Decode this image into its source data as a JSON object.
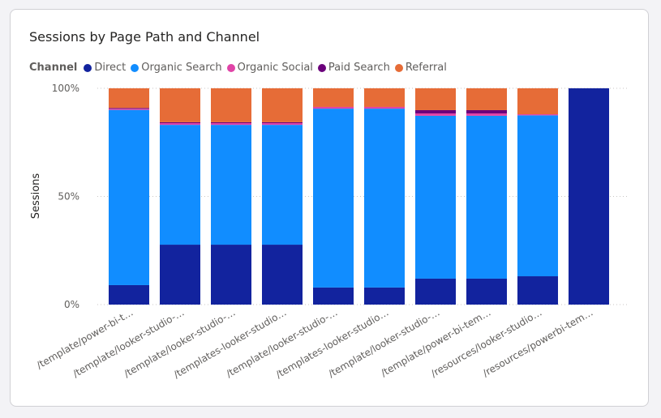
{
  "chart_data": {
    "type": "bar",
    "stacked": "100%",
    "title": "Sessions by Page Path and Channel",
    "legend_title": "Channel",
    "legend_position": "top-left",
    "ylabel": "Sessions",
    "xlabel": "",
    "ylim": [
      0,
      100
    ],
    "yticks": [
      "0%",
      "50%",
      "100%"
    ],
    "grid": true,
    "categories": [
      "/template/power-bi-t…",
      "/template/looker-studio-…",
      "/template/looker-studio-…",
      "/templates-looker-studio…",
      "/template/looker-studio-…",
      "/templates-looker-studio…",
      "/template/looker-studio-…",
      "/template/power-bi-tem…",
      "/resources/looker-studio…",
      "/resources/powerbi-tem…"
    ],
    "series": [
      {
        "name": "Direct",
        "color": "#12239E",
        "values": [
          9.0,
          27.7,
          27.7,
          27.7,
          7.9,
          7.9,
          12.0,
          12.0,
          13.1,
          100
        ]
      },
      {
        "name": "Organic Search",
        "color": "#118DFF",
        "values": [
          81.0,
          55.4,
          55.4,
          55.4,
          82.7,
          82.7,
          75.3,
          75.3,
          74.4,
          0
        ]
      },
      {
        "name": "Organic Social",
        "color": "#E044A7",
        "values": [
          0.5,
          0.8,
          0.8,
          0.8,
          0.8,
          0.8,
          1.1,
          1.1,
          0.5,
          0
        ]
      },
      {
        "name": "Paid Search",
        "color": "#6B007B",
        "values": [
          0.4,
          0.4,
          0.4,
          0.4,
          0,
          0,
          1.5,
          1.5,
          0,
          0
        ]
      },
      {
        "name": "Referral",
        "color": "#E66C37",
        "values": [
          9.1,
          15.7,
          15.7,
          15.7,
          8.6,
          8.6,
          10.1,
          10.1,
          12.0,
          0
        ]
      }
    ]
  }
}
